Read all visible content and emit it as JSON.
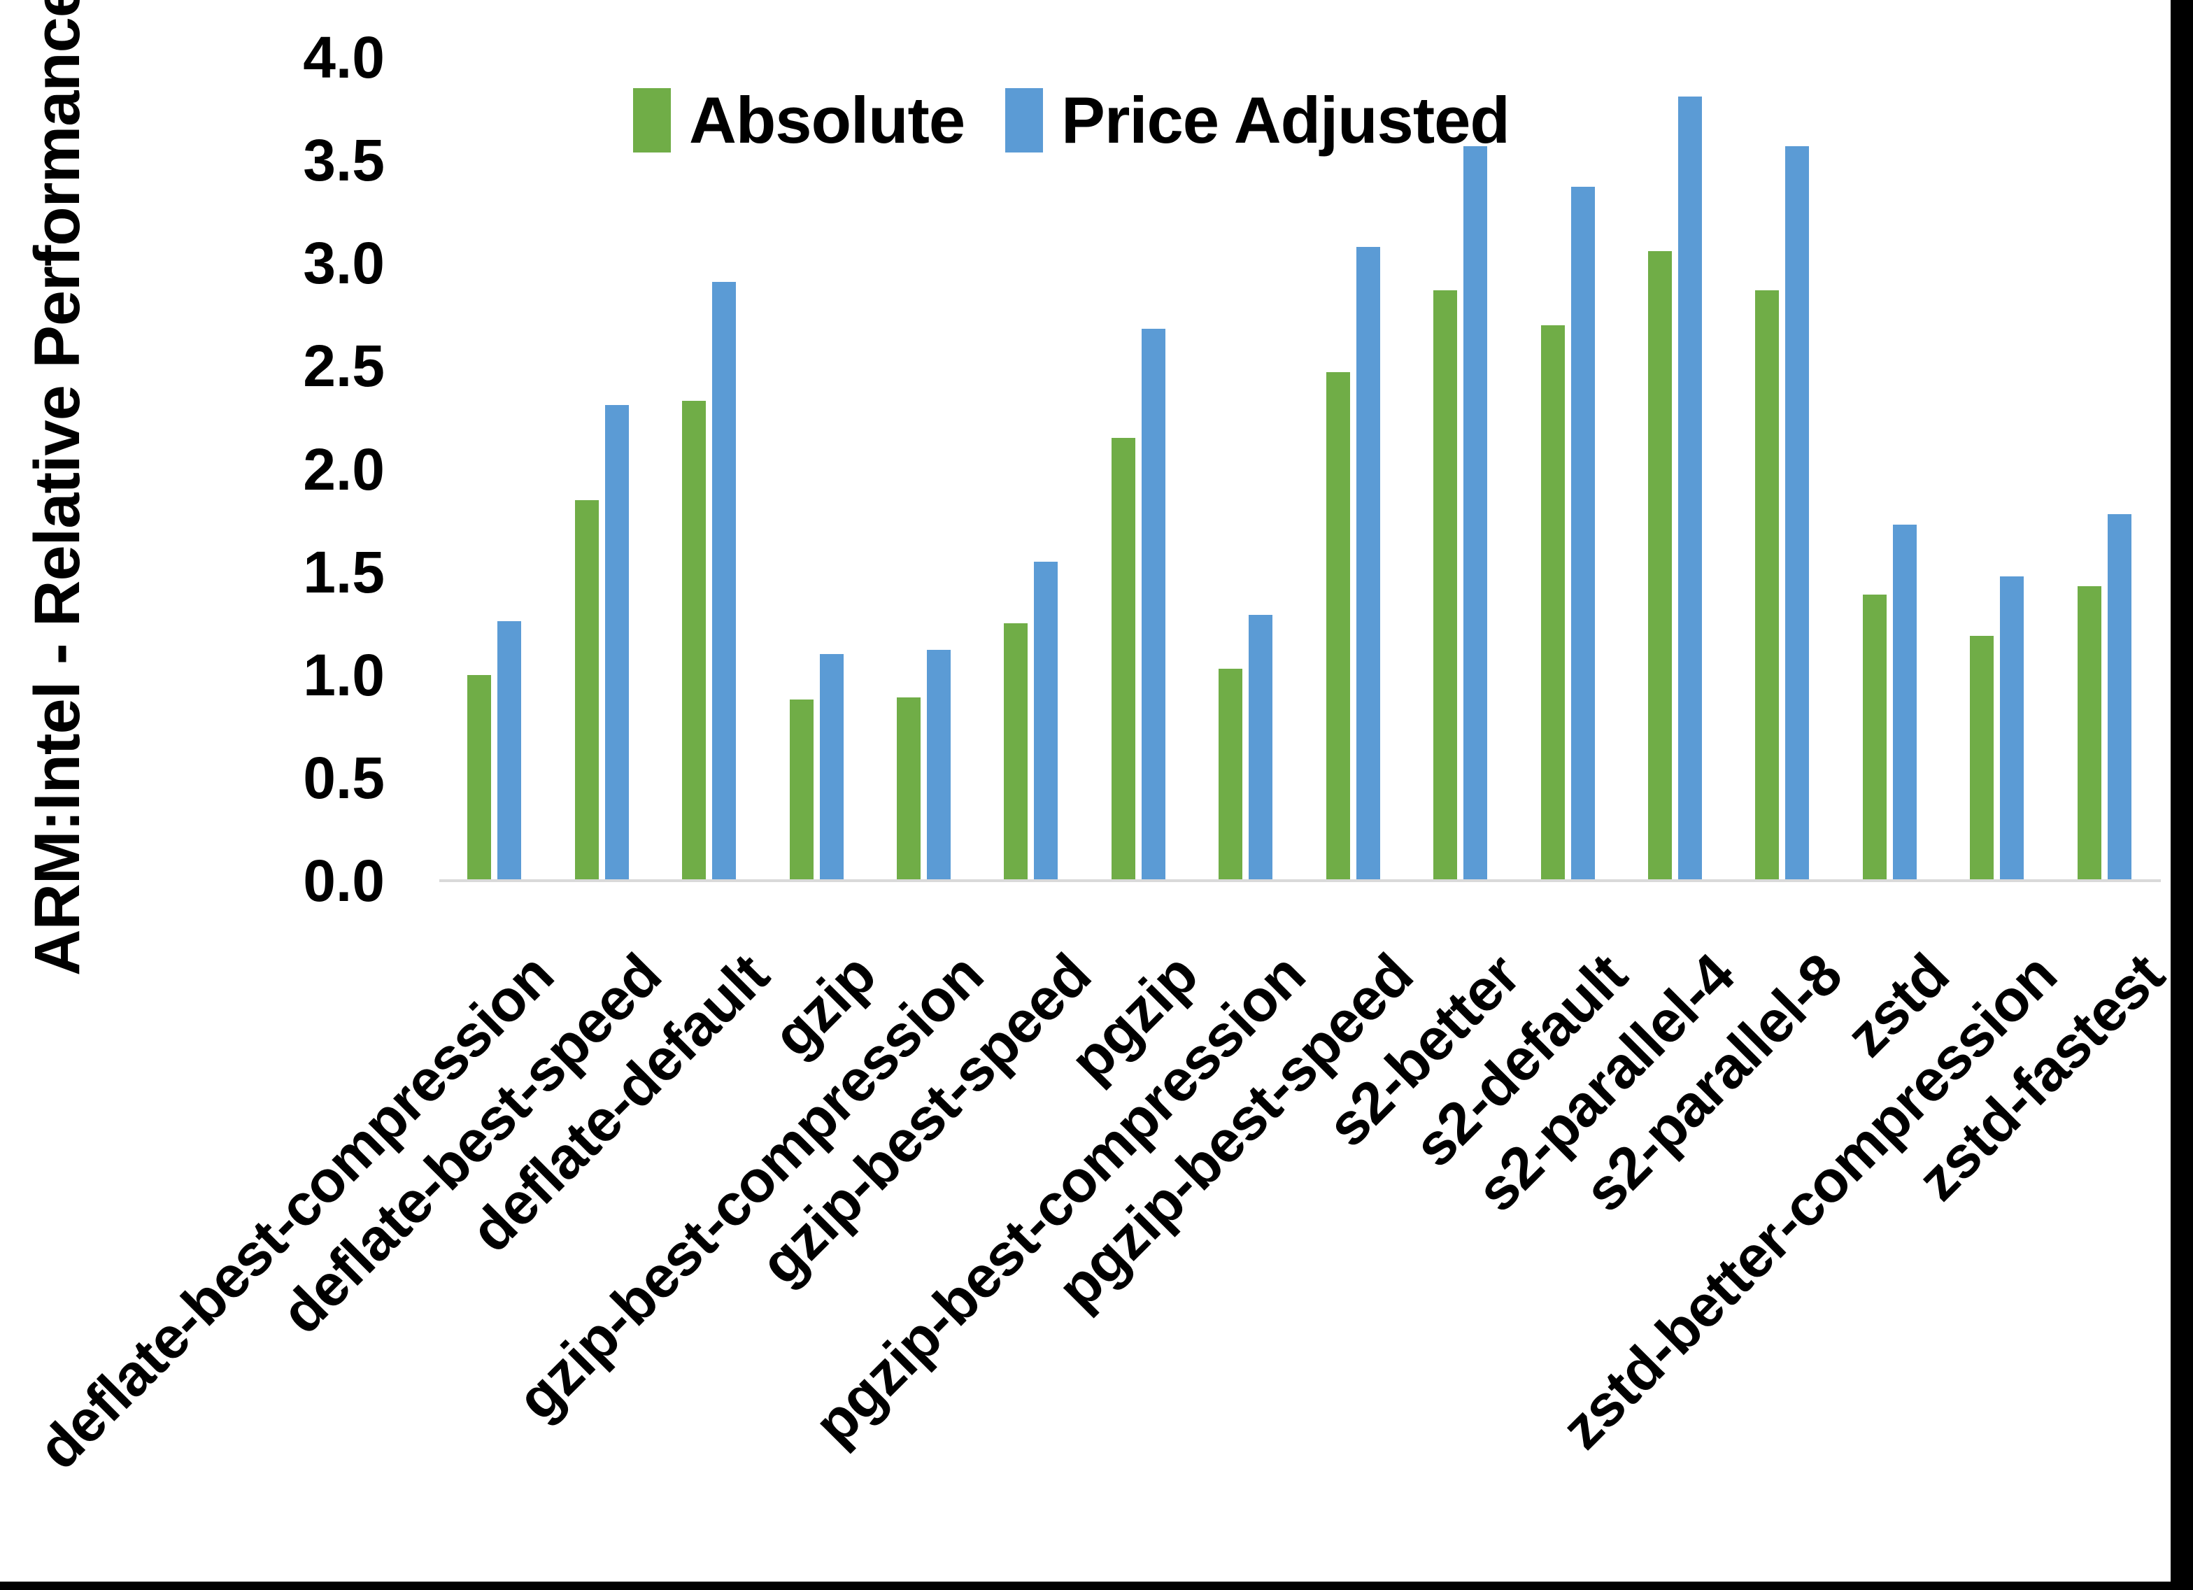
{
  "chart_data": {
    "type": "bar",
    "title": "",
    "ylabel": "ARM:Intel - Relative Performance",
    "xlabel": "",
    "ylim": [
      0.0,
      4.0
    ],
    "ytick_step": 0.5,
    "y_ticks": [
      "0.0",
      "0.5",
      "1.0",
      "1.5",
      "2.0",
      "2.5",
      "3.0",
      "3.5",
      "4.0"
    ],
    "grid": false,
    "legend_position": "top-center",
    "categories": [
      "deflate-best-compression",
      "deflate-best-speed",
      "deflate-default",
      "gzip",
      "gzip-best-compression",
      "gzip-best-speed",
      "pgzip",
      "pgzip-best-compression",
      "pgzip-best-speed",
      "s2-better",
      "s2-default",
      "s2-parallel-4",
      "s2-parallel-8",
      "zstd",
      "zstd-better-compression",
      "zstd-fastest"
    ],
    "series": [
      {
        "name": "Absolute",
        "color": "#70AD47",
        "values": [
          1.0,
          1.85,
          2.33,
          0.88,
          0.89,
          1.25,
          2.15,
          1.03,
          2.47,
          2.87,
          2.7,
          3.06,
          2.87,
          1.39,
          1.19,
          1.43
        ]
      },
      {
        "name": "Price Adjusted",
        "color": "#5B9BD5",
        "values": [
          1.26,
          2.31,
          2.91,
          1.1,
          1.12,
          1.55,
          2.68,
          1.29,
          3.08,
          3.57,
          3.37,
          3.81,
          3.57,
          1.73,
          1.48,
          1.78
        ]
      }
    ],
    "axis_line_color": "#D9D9D9",
    "text_color": "#000000",
    "background": "#FFFFFF",
    "frame_color": "#000000"
  }
}
